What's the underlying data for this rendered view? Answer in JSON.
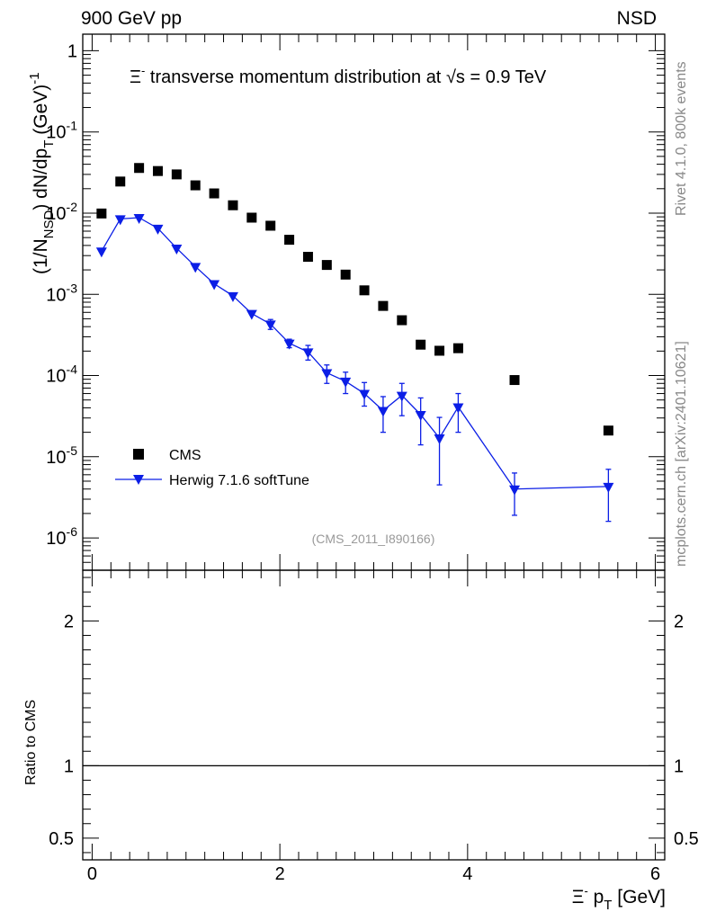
{
  "header": {
    "left_label": "900 GeV pp",
    "right_label": "NSD"
  },
  "side_labels": {
    "rivet": "Rivet 4.1.0,  800k events",
    "mcplots": "mcplots.cern.ch [arXiv:2401.10621]"
  },
  "chart_data": [
    {
      "type": "scatter",
      "panel": "main",
      "title_prefix": "Ξ",
      "title_prefix_sup": "-",
      "title_main": " transverse momentum distribution at ",
      "title_sqrt": "√s",
      "title_suffix": " = 0.9 TeV",
      "ylabel": "(1/N_NSD) dN/dp_T (GeV)^-1",
      "ylabel_parts": {
        "a": "(1/N",
        "a_sub": "NSD",
        "b": ") dN/dp",
        "b_sub": "T",
        "c": " (GeV)",
        "c_sup": "-1"
      },
      "yscale": "log",
      "ylim": [
        4e-07,
        1.6
      ],
      "xlim": [
        -0.1,
        6.1
      ],
      "y_tick_labels": [
        {
          "base": "1",
          "exp": ""
        },
        {
          "base": "10",
          "exp": "-1"
        },
        {
          "base": "10",
          "exp": "-2"
        },
        {
          "base": "10",
          "exp": "-3"
        },
        {
          "base": "10",
          "exp": "-4"
        },
        {
          "base": "10",
          "exp": "-5"
        },
        {
          "base": "10",
          "exp": "-6"
        }
      ],
      "y_tick_values": [
        1,
        0.1,
        0.01,
        0.001,
        0.0001,
        1e-05,
        1e-06
      ],
      "watermark": "(CMS_2011_I890166)",
      "legend_position": "bottom-left",
      "series": [
        {
          "name": "CMS",
          "marker": "square",
          "color": "#000000",
          "x": [
            0.1,
            0.3,
            0.5,
            0.7,
            0.9,
            1.1,
            1.3,
            1.5,
            1.7,
            1.9,
            2.1,
            2.3,
            2.5,
            2.7,
            2.9,
            3.1,
            3.3,
            3.5,
            3.7,
            3.9,
            4.5,
            5.5
          ],
          "y": [
            0.0099,
            0.0245,
            0.036,
            0.033,
            0.03,
            0.022,
            0.0175,
            0.0125,
            0.0088,
            0.007,
            0.0047,
            0.0029,
            0.0023,
            0.00175,
            0.00112,
            0.00072,
            0.00048,
            0.00024,
            0.000202,
            0.000217,
            8.8e-05,
            2.1e-05
          ]
        },
        {
          "name": "Herwig 7.1.6 softTune",
          "marker": "triangle-down",
          "color": "#0b1ee6",
          "x": [
            0.1,
            0.3,
            0.5,
            0.7,
            0.9,
            1.1,
            1.3,
            1.5,
            1.7,
            1.9,
            2.1,
            2.3,
            2.5,
            2.7,
            2.9,
            3.1,
            3.3,
            3.5,
            3.7,
            3.9,
            4.5,
            5.5
          ],
          "y": [
            0.0034,
            0.0085,
            0.0088,
            0.0065,
            0.0037,
            0.0022,
            0.00135,
            0.00096,
            0.00058,
            0.00043,
            0.00025,
            0.000195,
            0.000108,
            8.5e-05,
            6e-05,
            3.7e-05,
            5.7e-05,
            3.3e-05,
            1.7e-05,
            4.1e-05,
            4e-06,
            4.3e-06
          ],
          "y_err_low": [
            0.0001,
            0.0002,
            0.0002,
            0.0002,
            0.0001,
            8e-05,
            6e-05,
            5e-05,
            4e-05,
            6e-05,
            3e-05,
            4e-05,
            2.8e-05,
            2.5e-05,
            1.8e-05,
            1.7e-05,
            2.5e-05,
            1.9e-05,
            1.25e-05,
            2.1e-05,
            2.1e-06,
            2.7e-06
          ],
          "y_err_high": [
            0.0001,
            0.0002,
            0.0002,
            0.0002,
            0.0001,
            8e-05,
            6e-05,
            5e-05,
            4e-05,
            6e-05,
            3e-05,
            4e-05,
            2.7e-05,
            2.5e-05,
            2.2e-05,
            1.8e-05,
            2.3e-05,
            2e-05,
            1.35e-05,
            1.9e-05,
            2.3e-06,
            2.7e-06
          ]
        }
      ]
    },
    {
      "type": "line",
      "panel": "ratio",
      "ylabel": "Ratio to CMS",
      "ylim": [
        0.35,
        2.35
      ],
      "xlim": [
        -0.1,
        6.1
      ],
      "y_tick_labels": [
        "2",
        "1",
        "0.5"
      ],
      "y_tick_values": [
        2,
        1,
        0.5
      ],
      "x_tick_labels": [
        "0",
        "2",
        "4",
        "6"
      ],
      "x_tick_values": [
        0,
        2,
        4,
        6
      ],
      "xlabel_prefix": "Ξ",
      "xlabel_prefix_sup": "-",
      "xlabel_main": " p",
      "xlabel_sub": "T",
      "xlabel_suffix": " [GeV]",
      "reference_value": 1
    }
  ]
}
